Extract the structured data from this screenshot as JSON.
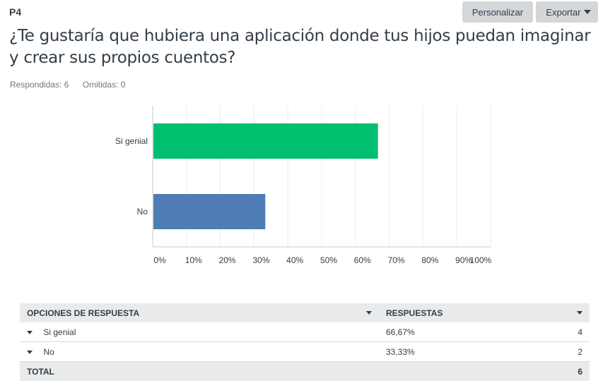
{
  "header": {
    "question_number": "P4",
    "customize_label": "Personalizar",
    "export_label": "Exportar",
    "question_title": "¿Te gustaría que hubiera una aplicación donde tus hijos puedan imaginar y crear sus propios cuentos?",
    "answered": "Respondidas: 6",
    "skipped": "Omitidas: 0"
  },
  "chart_data": {
    "type": "bar",
    "orientation": "horizontal",
    "categories": [
      "Si genial",
      "No"
    ],
    "values": [
      66.67,
      33.33
    ],
    "colors": [
      "#00bf6f",
      "#507cb6"
    ],
    "xlim": [
      0,
      100
    ],
    "x_ticks": [
      "0%",
      "10%",
      "20%",
      "30%",
      "40%",
      "50%",
      "60%",
      "70%",
      "80%",
      "90%",
      "100%"
    ],
    "grid": true
  },
  "table": {
    "headers": [
      "OPCIONES DE RESPUESTA",
      "RESPUESTAS"
    ],
    "rows": [
      {
        "option": "Si genial",
        "percent": "66,67%",
        "count": "4"
      },
      {
        "option": "No",
        "percent": "33,33%",
        "count": "2"
      }
    ],
    "total_label": "TOTAL",
    "total_count": "6"
  }
}
